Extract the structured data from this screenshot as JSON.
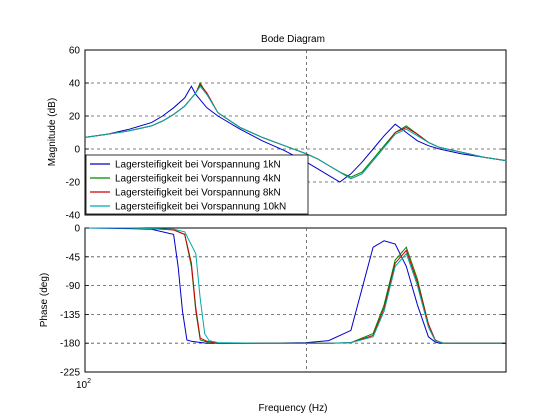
{
  "chart_data": {
    "type": "line",
    "title": "Bode Diagram",
    "xlabel": "Frequency  (Hz)",
    "x_scale": "log",
    "x_tick_label": "10",
    "x_tick_exponent": "2",
    "colors": [
      "#0000cc",
      "#008800",
      "#cc0000",
      "#00aaaa"
    ],
    "legend": {
      "placement": "lower-left of magnitude panel",
      "entries": [
        "Lagersteifigkeit bei Vorspannung 1kN",
        "Lagersteifigkeit bei Vorspannung 4kN",
        "Lagersteifigkeit bei Vorspannung 8kN",
        "Lagersteifigkeit bei Vorspannung 10kN"
      ]
    },
    "panels": [
      {
        "name": "magnitude",
        "ylabel": "Magnitude (dB)",
        "ylim": [
          -40,
          60
        ],
        "yticks": [
          -40,
          -20,
          0,
          20,
          40,
          60
        ],
        "grid": true,
        "series": [
          {
            "x": [
              0,
              0.1,
              0.2,
              0.3,
              0.35,
              0.4,
              0.45,
              0.48,
              0.5,
              0.55,
              0.6,
              0.7,
              0.8,
              0.9,
              1.0,
              1.05,
              1.1,
              1.15,
              1.2,
              1.25,
              1.3,
              1.35,
              1.4,
              1.45,
              1.5,
              1.55,
              1.6,
              1.7,
              1.8,
              1.9
            ],
            "y": [
              7,
              9,
              12,
              16,
              20,
              25,
              31,
              38,
              33,
              25,
              20,
              12,
              5,
              -1,
              -8,
              -12,
              -16,
              -20,
              -15,
              -8,
              0,
              8,
              15,
              10,
              5,
              2,
              0,
              -3,
              -5,
              -7
            ]
          },
          {
            "x": [
              0,
              0.1,
              0.2,
              0.3,
              0.35,
              0.4,
              0.45,
              0.5,
              0.52,
              0.55,
              0.6,
              0.7,
              0.8,
              0.9,
              1.0,
              1.05,
              1.1,
              1.15,
              1.2,
              1.25,
              1.3,
              1.35,
              1.4,
              1.45,
              1.5,
              1.55,
              1.6,
              1.7,
              1.8,
              1.9
            ],
            "y": [
              7,
              9,
              11,
              14,
              17,
              21,
              26,
              34,
              40,
              33,
              22,
              13,
              7,
              2,
              -3,
              -6,
              -10,
              -14,
              -17,
              -14,
              -6,
              2,
              10,
              14,
              9,
              4,
              1,
              -2,
              -5,
              -7
            ]
          },
          {
            "x": [
              0,
              0.1,
              0.2,
              0.3,
              0.35,
              0.4,
              0.45,
              0.5,
              0.52,
              0.55,
              0.6,
              0.7,
              0.8,
              0.9,
              1.0,
              1.05,
              1.1,
              1.15,
              1.2,
              1.25,
              1.3,
              1.35,
              1.4,
              1.45,
              1.5,
              1.55,
              1.6,
              1.7,
              1.8,
              1.9
            ],
            "y": [
              7,
              9,
              11,
              14,
              17,
              21,
              26,
              34,
              39,
              34,
              22,
              13,
              7,
              2,
              -3,
              -6,
              -10,
              -14,
              -18,
              -15,
              -7,
              1,
              10,
              13,
              9,
              4,
              1,
              -2,
              -5,
              -7
            ]
          },
          {
            "x": [
              0,
              0.1,
              0.2,
              0.3,
              0.35,
              0.4,
              0.45,
              0.5,
              0.52,
              0.55,
              0.6,
              0.7,
              0.8,
              0.9,
              1.0,
              1.05,
              1.1,
              1.15,
              1.2,
              1.25,
              1.3,
              1.35,
              1.4,
              1.45,
              1.5,
              1.55,
              1.6,
              1.7,
              1.8,
              1.9
            ],
            "y": [
              7,
              9,
              11,
              14,
              17,
              21,
              26,
              34,
              38,
              33,
              22,
              13,
              7,
              2,
              -3,
              -6,
              -10,
              -14,
              -18,
              -15,
              -7,
              1,
              9,
              12,
              8,
              4,
              1,
              -2,
              -5,
              -7
            ]
          }
        ]
      },
      {
        "name": "phase",
        "ylabel": "Phase (deg)",
        "ylim": [
          -225,
          0
        ],
        "yticks": [
          -225,
          -180,
          -135,
          -90,
          -45,
          0
        ],
        "grid": true,
        "series": [
          {
            "x": [
              0,
              0.2,
              0.3,
              0.4,
              0.42,
              0.44,
              0.46,
              0.48,
              0.5,
              0.55,
              0.6,
              0.8,
              1.0,
              1.1,
              1.2,
              1.3,
              1.35,
              1.4,
              1.45,
              1.5,
              1.55,
              1.58,
              1.6,
              1.62,
              1.65,
              1.7,
              1.8,
              1.9
            ],
            "y": [
              0,
              -1,
              -2,
              -10,
              -60,
              -130,
              -175,
              -177,
              -178,
              -180,
              -180,
              -180,
              -179,
              -176,
              -160,
              -30,
              -20,
              -25,
              -60,
              -120,
              -170,
              -178,
              -180,
              -180,
              -180,
              -180,
              -180,
              -180
            ]
          },
          {
            "x": [
              0,
              0.2,
              0.3,
              0.4,
              0.45,
              0.48,
              0.5,
              0.52,
              0.55,
              0.6,
              0.8,
              1.0,
              1.1,
              1.2,
              1.3,
              1.35,
              1.4,
              1.45,
              1.5,
              1.55,
              1.58,
              1.6,
              1.62,
              1.65,
              1.7,
              1.8,
              1.9
            ],
            "y": [
              0,
              0,
              -1,
              -3,
              -10,
              -60,
              -130,
              -175,
              -178,
              -180,
              -180,
              -180,
              -180,
              -179,
              -165,
              -120,
              -50,
              -30,
              -80,
              -150,
              -175,
              -178,
              -180,
              -180,
              -180,
              -180,
              -180
            ]
          },
          {
            "x": [
              0,
              0.2,
              0.3,
              0.4,
              0.45,
              0.48,
              0.5,
              0.52,
              0.55,
              0.6,
              0.8,
              1.0,
              1.1,
              1.2,
              1.3,
              1.35,
              1.4,
              1.45,
              1.5,
              1.55,
              1.58,
              1.6,
              1.62,
              1.65,
              1.7,
              1.8,
              1.9
            ],
            "y": [
              0,
              0,
              -1,
              -3,
              -10,
              -55,
              -125,
              -172,
              -177,
              -180,
              -180,
              -180,
              -180,
              -179,
              -168,
              -125,
              -55,
              -35,
              -85,
              -150,
              -175,
              -178,
              -180,
              -180,
              -180,
              -180,
              -180
            ]
          },
          {
            "x": [
              0,
              0.2,
              0.3,
              0.4,
              0.45,
              0.5,
              0.52,
              0.54,
              0.56,
              0.6,
              0.8,
              1.0,
              1.1,
              1.2,
              1.3,
              1.35,
              1.4,
              1.45,
              1.5,
              1.55,
              1.58,
              1.6,
              1.62,
              1.65,
              1.7,
              1.8,
              1.9
            ],
            "y": [
              0,
              0,
              -1,
              -2,
              -6,
              -40,
              -110,
              -165,
              -176,
              -179,
              -180,
              -180,
              -180,
              -179,
              -170,
              -130,
              -60,
              -40,
              -90,
              -155,
              -176,
              -178,
              -180,
              -180,
              -180,
              -180,
              -180
            ]
          }
        ]
      }
    ]
  }
}
